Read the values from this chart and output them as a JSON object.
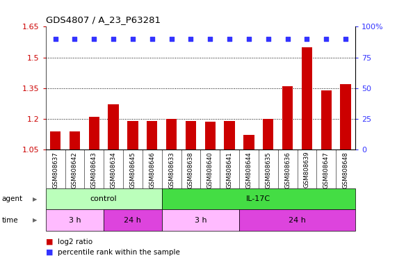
{
  "title": "GDS4807 / A_23_P63281",
  "samples": [
    "GSM808637",
    "GSM808642",
    "GSM808643",
    "GSM808634",
    "GSM808645",
    "GSM808646",
    "GSM808633",
    "GSM808638",
    "GSM808640",
    "GSM808641",
    "GSM808644",
    "GSM808635",
    "GSM808636",
    "GSM808639",
    "GSM808647",
    "GSM808648"
  ],
  "log2_ratio": [
    1.14,
    1.14,
    1.21,
    1.27,
    1.19,
    1.19,
    1.2,
    1.19,
    1.185,
    1.19,
    1.12,
    1.2,
    1.36,
    1.55,
    1.34,
    1.37
  ],
  "percentile_y": [
    90,
    90,
    90,
    90,
    90,
    90,
    90,
    90,
    90,
    90,
    90,
    90,
    90,
    90,
    90,
    90
  ],
  "ylim_left": [
    1.05,
    1.65
  ],
  "ylim_right": [
    0,
    100
  ],
  "yticks_left": [
    1.05,
    1.2,
    1.35,
    1.5,
    1.65
  ],
  "yticks_right": [
    0,
    25,
    50,
    75,
    100
  ],
  "hlines": [
    1.2,
    1.35,
    1.5
  ],
  "bar_color": "#cc0000",
  "dot_color": "#3333ff",
  "bar_width": 0.55,
  "agent_groups": [
    {
      "label": "control",
      "start": 0,
      "end": 6,
      "color": "#bbffbb"
    },
    {
      "label": "IL-17C",
      "start": 6,
      "end": 16,
      "color": "#44dd44"
    }
  ],
  "time_groups": [
    {
      "label": "3 h",
      "start": 0,
      "end": 3,
      "color": "#ffbbff"
    },
    {
      "label": "24 h",
      "start": 3,
      "end": 6,
      "color": "#dd44dd"
    },
    {
      "label": "3 h",
      "start": 6,
      "end": 10,
      "color": "#ffbbff"
    },
    {
      "label": "24 h",
      "start": 10,
      "end": 16,
      "color": "#dd44dd"
    }
  ],
  "tick_color_left": "#cc0000",
  "tick_color_right": "#3333ff",
  "legend_text1": "log2 ratio",
  "legend_text2": "percentile rank within the sample",
  "legend_color1": "#cc0000",
  "legend_color2": "#3333ff",
  "xtick_bg": "#cccccc",
  "bg_color": "#ffffff"
}
